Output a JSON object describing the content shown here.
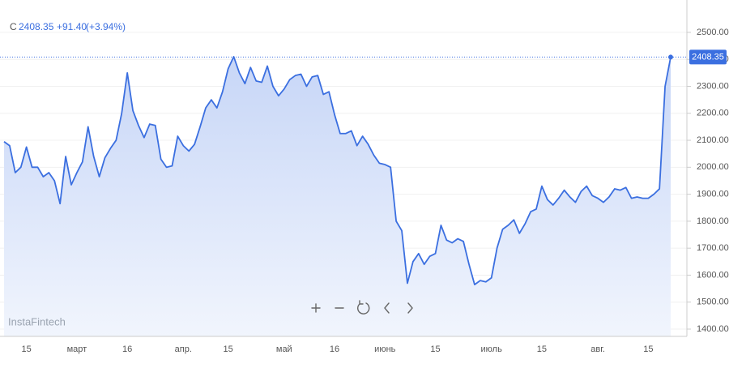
{
  "header": {
    "symbol": "C",
    "close": "2408.35",
    "change": "+91.40",
    "change_percent": "(+3.94%)"
  },
  "watermark": "InstaFintech",
  "chart_data": {
    "type": "area",
    "color": "#3b6fe0",
    "categories": [
      null,
      null,
      null,
      null,
      "15",
      null,
      null,
      null,
      null,
      null,
      null,
      null,
      null,
      "март",
      null,
      null,
      null,
      null,
      null,
      null,
      null,
      null,
      "16",
      null,
      null,
      null,
      null,
      null,
      null,
      null,
      null,
      null,
      "апр.",
      null,
      null,
      null,
      null,
      null,
      null,
      null,
      "15",
      null,
      null,
      null,
      null,
      null,
      null,
      null,
      null,
      null,
      "май",
      null,
      null,
      null,
      null,
      null,
      null,
      null,
      null,
      "16",
      null,
      null,
      null,
      null,
      null,
      null,
      null,
      null,
      "июнь",
      null,
      null,
      null,
      null,
      null,
      null,
      null,
      null,
      "15",
      null,
      null,
      null,
      null,
      null,
      null,
      null,
      null,
      null,
      "июль",
      null,
      null,
      null,
      null,
      null,
      null,
      null,
      null,
      "15",
      null,
      null,
      null,
      null,
      null,
      null,
      null,
      null,
      null,
      "авг.",
      null,
      null,
      null,
      null,
      null,
      null,
      null,
      null,
      "15",
      null,
      null,
      null,
      null
    ],
    "values": [
      2095,
      2080,
      1980,
      2000,
      2075,
      2000,
      2000,
      1965,
      1980,
      1950,
      1865,
      2040,
      1935,
      1980,
      2020,
      2150,
      2040,
      1965,
      2035,
      2070,
      2100,
      2200,
      2350,
      2210,
      2155,
      2110,
      2160,
      2155,
      2030,
      2000,
      2005,
      2115,
      2080,
      2060,
      2085,
      2150,
      2220,
      2250,
      2220,
      2280,
      2365,
      2410,
      2350,
      2310,
      2370,
      2320,
      2315,
      2375,
      2300,
      2265,
      2290,
      2325,
      2340,
      2345,
      2300,
      2335,
      2340,
      2270,
      2280,
      2195,
      2125,
      2125,
      2135,
      2080,
      2115,
      2085,
      2045,
      2015,
      2010,
      2000,
      1800,
      1765,
      1570,
      1650,
      1680,
      1640,
      1670,
      1680,
      1785,
      1730,
      1720,
      1735,
      1725,
      1640,
      1565,
      1580,
      1575,
      1590,
      1700,
      1770,
      1785,
      1805,
      1755,
      1790,
      1835,
      1845,
      1930,
      1880,
      1860,
      1885,
      1915,
      1890,
      1870,
      1910,
      1930,
      1895,
      1885,
      1870,
      1890,
      1920,
      1915,
      1925,
      1885,
      1890,
      1885,
      1885,
      1900,
      1920,
      2300,
      2408.35
    ],
    "ylim": [
      1373,
      2620
    ],
    "yticks": [
      {
        "value": 1400,
        "label": "1400.00"
      },
      {
        "value": 1500,
        "label": "1500.00"
      },
      {
        "value": 1600,
        "label": "1600.00"
      },
      {
        "value": 1700,
        "label": "1700.00"
      },
      {
        "value": 1800,
        "label": "1800.00"
      },
      {
        "value": 1900,
        "label": "1900.00"
      },
      {
        "value": 2000,
        "label": "2000.00"
      },
      {
        "value": 2100,
        "label": "2100.00"
      },
      {
        "value": 2200,
        "label": "2200.00"
      },
      {
        "value": 2300,
        "label": "2300.00"
      },
      {
        "value": 2400,
        "label": "2400.00"
      },
      {
        "value": 2500,
        "label": "2500.00"
      }
    ],
    "grid": true
  }
}
